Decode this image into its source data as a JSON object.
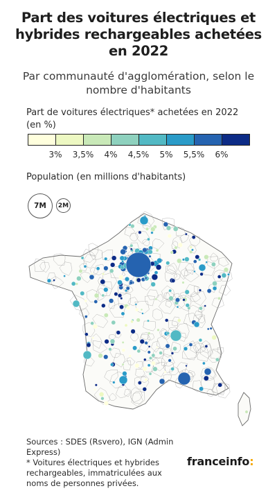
{
  "header": {
    "title": "Part des voitures électriques et hybrides rechargeables achetées en 2022",
    "subtitle": "Par communauté d'agglomération, selon le nombre d'habitants"
  },
  "legend": {
    "color_title": "Part de voitures électriques* achetées en 2022 (en %)",
    "colors": [
      "#ffffdd",
      "#edf8c2",
      "#c9e9b8",
      "#8ed1be",
      "#52b9c4",
      "#2a9bc8",
      "#2563b0",
      "#0c2b86"
    ],
    "ticks": [
      "3%",
      "3,5%",
      "4%",
      "4,5%",
      "5%",
      "5,5%",
      "6%"
    ],
    "size_title": "Population (en millions d'habitants)",
    "size_labels": [
      "7M",
      "2M"
    ]
  },
  "footer": {
    "sources": "Sources : SDES (Rsvero), IGN (Admin Express)",
    "note": "* Voitures électriques et hybrides rechargeables, immatriculées aux noms de personnes privées.",
    "logo_main": "franceinfo",
    "logo_accent": ":"
  }
}
